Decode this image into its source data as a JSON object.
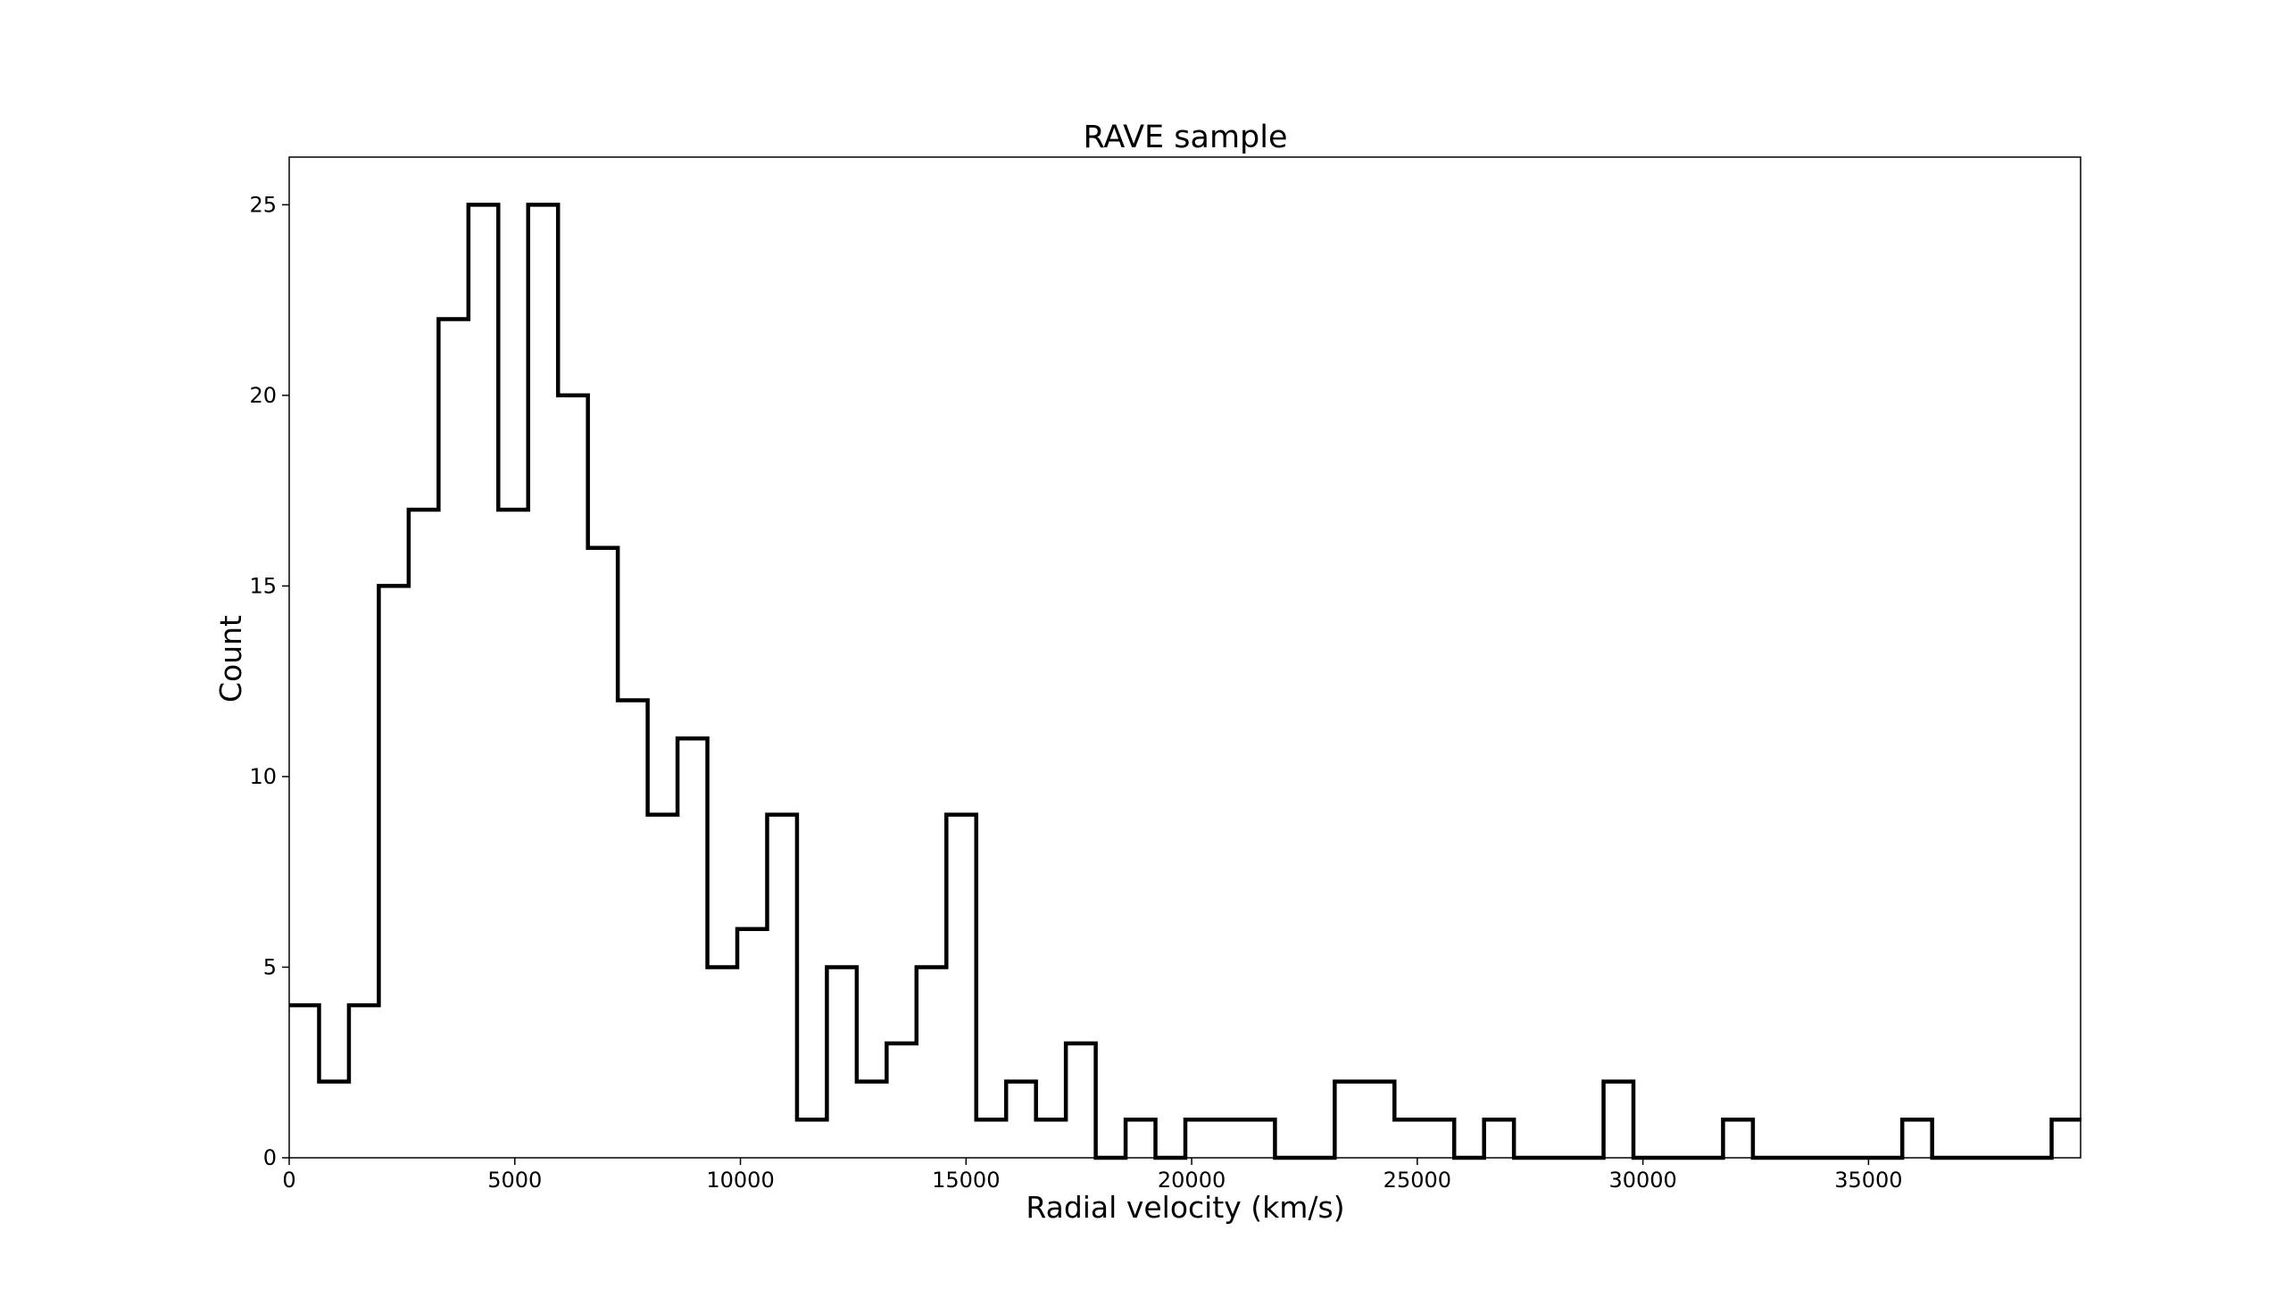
{
  "chart_data": {
    "type": "histogram",
    "title": "RAVE sample",
    "xlabel": "Radial velocity (km/s)",
    "ylabel": "Count",
    "xlim": [
      0,
      39700
    ],
    "ylim": [
      0,
      26.25
    ],
    "bin_width": 662,
    "bin_start": 0,
    "x_ticks": [
      0,
      5000,
      10000,
      15000,
      20000,
      25000,
      30000,
      35000
    ],
    "x_tick_labels": [
      "0",
      "5000",
      "10000",
      "15000",
      "20000",
      "25000",
      "30000",
      "35000"
    ],
    "y_ticks": [
      0,
      5,
      10,
      15,
      20,
      25
    ],
    "y_tick_labels": [
      "0",
      "5",
      "10",
      "15",
      "20",
      "25"
    ],
    "series": [
      {
        "style": "step",
        "color": "#000000",
        "values": [
          4,
          2,
          4,
          15,
          17,
          22,
          25,
          17,
          25,
          20,
          16,
          12,
          9,
          11,
          5,
          6,
          9,
          1,
          5,
          2,
          3,
          5,
          9,
          1,
          2,
          1,
          3,
          0,
          1,
          0,
          1,
          1,
          1,
          0,
          0,
          2,
          2,
          1,
          1,
          0,
          1,
          0,
          0,
          0,
          2,
          0,
          0,
          0,
          1,
          0,
          0,
          0,
          0,
          0,
          1,
          0,
          0,
          0,
          0,
          1
        ]
      }
    ],
    "grid": false,
    "legend": "none"
  }
}
